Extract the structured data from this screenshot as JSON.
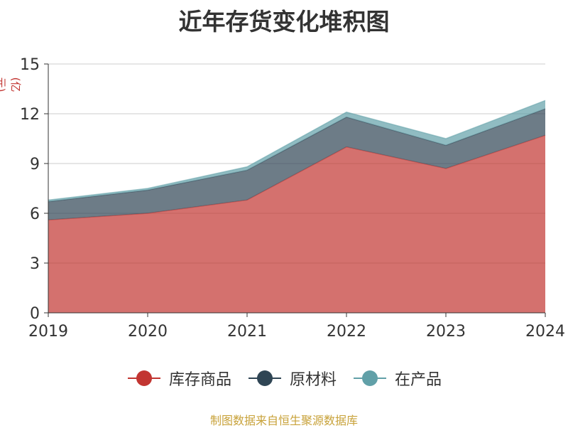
{
  "title": "近年存货变化堆积图",
  "unit_label": "(亿元)",
  "source": "制图数据来自恒生聚源数据库",
  "chart_data": {
    "type": "area",
    "stacked": true,
    "title": "近年存货变化堆积图",
    "ylabel": "(亿元)",
    "categories": [
      "2019",
      "2020",
      "2021",
      "2022",
      "2023",
      "2024"
    ],
    "ylim": [
      0,
      15
    ],
    "yticks": [
      0,
      3,
      6,
      9,
      12,
      15
    ],
    "grid": true,
    "legend_position": "bottom",
    "series": [
      {
        "name": "库存商品",
        "color": "#c23531",
        "values": [
          5.6,
          6.0,
          6.8,
          10.0,
          8.7,
          10.7
        ]
      },
      {
        "name": "原材料",
        "color": "#2f4554",
        "values": [
          1.1,
          1.4,
          1.8,
          1.8,
          1.4,
          1.6
        ]
      },
      {
        "name": "在产品",
        "color": "#61a0a8",
        "values": [
          0.1,
          0.1,
          0.2,
          0.3,
          0.4,
          0.5
        ]
      }
    ]
  }
}
